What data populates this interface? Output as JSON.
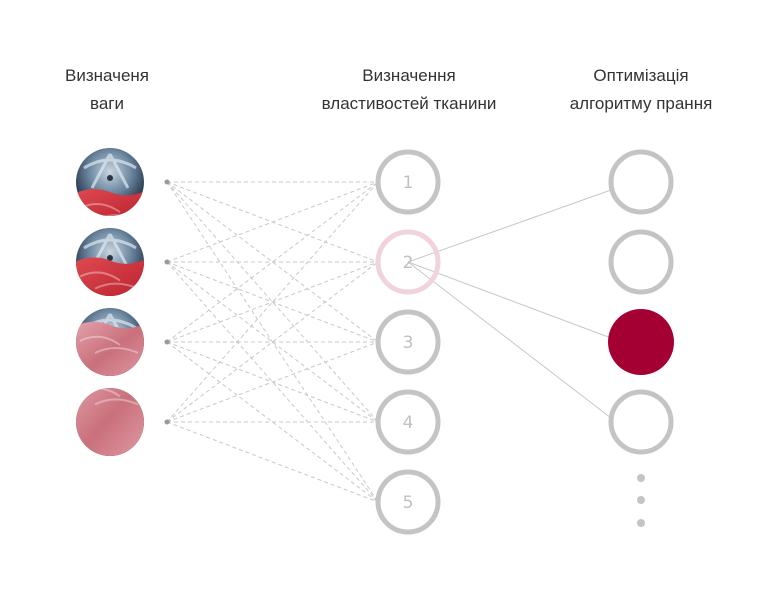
{
  "columns": [
    {
      "title_line1": "Визначеня",
      "title_line2": "ваги"
    },
    {
      "title_line1": "Визначення",
      "title_line2": "властивостей тканини"
    },
    {
      "title_line1": "Оптимізація",
      "title_line2": "алгоритму прання"
    }
  ],
  "weight_inputs": [
    {
      "icon": "drum-low-load-photo"
    },
    {
      "icon": "drum-half-load-photo"
    },
    {
      "icon": "drum-high-load-photo"
    },
    {
      "icon": "drum-full-load-photo"
    }
  ],
  "fabric_nodes": [
    "1",
    "2",
    "3",
    "4",
    "5"
  ],
  "active_fabric_node": "2",
  "algorithm_nodes": 4,
  "selected_algorithm_node": 3,
  "algorithm_links_from_active": [
    1,
    3,
    4
  ],
  "colors": {
    "ring": "#c4c4c4",
    "active_ring": "#f0d3dc",
    "selected": "#a50034",
    "dashed_line": "#c8c8c8",
    "solid_line": "#c8c8c8",
    "dot": "#9a9a9a"
  }
}
